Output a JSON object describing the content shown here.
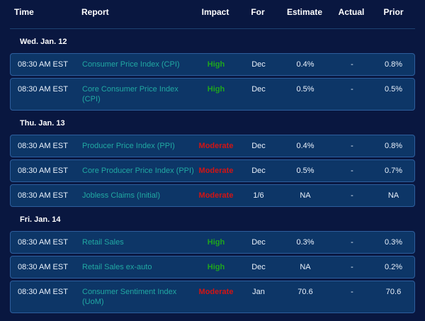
{
  "header": {
    "columns": [
      "Time",
      "Report",
      "Impact",
      "For",
      "Estimate",
      "Actual",
      "Prior"
    ]
  },
  "sections": [
    {
      "date": "Wed. Jan. 12",
      "rows": [
        {
          "time": "08:30 AM EST",
          "report": "Consumer Price Index (CPI)",
          "impact": "High",
          "for": "Dec",
          "estimate": "0.4%",
          "actual": "-",
          "prior": "0.8%"
        },
        {
          "time": "08:30 AM EST",
          "report": "Core Consumer Price Index\n(CPI)",
          "impact": "High",
          "for": "Dec",
          "estimate": "0.5%",
          "actual": "-",
          "prior": "0.5%"
        }
      ]
    },
    {
      "date": "Thu. Jan. 13",
      "rows": [
        {
          "time": "08:30 AM EST",
          "report": "Producer Price Index (PPI)",
          "impact": "Moderate",
          "for": "Dec",
          "estimate": "0.4%",
          "actual": "-",
          "prior": "0.8%"
        },
        {
          "time": "08:30 AM EST",
          "report": "Core Producer Price Index (PPI)",
          "impact": "Moderate",
          "for": "Dec",
          "estimate": "0.5%",
          "actual": "-",
          "prior": "0.7%"
        },
        {
          "time": "08:30 AM EST",
          "report": "Jobless Claims (Initial)",
          "impact": "Moderate",
          "for": "1/6",
          "estimate": "NA",
          "actual": "-",
          "prior": "NA"
        }
      ]
    },
    {
      "date": "Fri. Jan. 14",
      "rows": [
        {
          "time": "08:30 AM EST",
          "report": "Retail Sales",
          "impact": "High",
          "for": "Dec",
          "estimate": "0.3%",
          "actual": "-",
          "prior": "0.3%"
        },
        {
          "time": "08:30 AM EST",
          "report": "Retail Sales ex-auto",
          "impact": "High",
          "for": "Dec",
          "estimate": "NA",
          "actual": "-",
          "prior": "0.2%"
        },
        {
          "time": "08:30 AM EST",
          "report": "Consumer Sentiment Index\n(UoM)",
          "impact": "Moderate",
          "for": "Jan",
          "estimate": "70.6",
          "actual": "-",
          "prior": "70.6"
        }
      ]
    }
  ],
  "colors": {
    "page-bg": "#091740",
    "row-bg": "#0d3667",
    "row-border": "#2d5e9d",
    "divider": "#1d4170",
    "text-primary": "#ffffff",
    "text-values": "#e9f1fb",
    "report-link": "#21a9a3",
    "impact-high": "#1ea51e",
    "impact-moderate": "#d21414"
  }
}
